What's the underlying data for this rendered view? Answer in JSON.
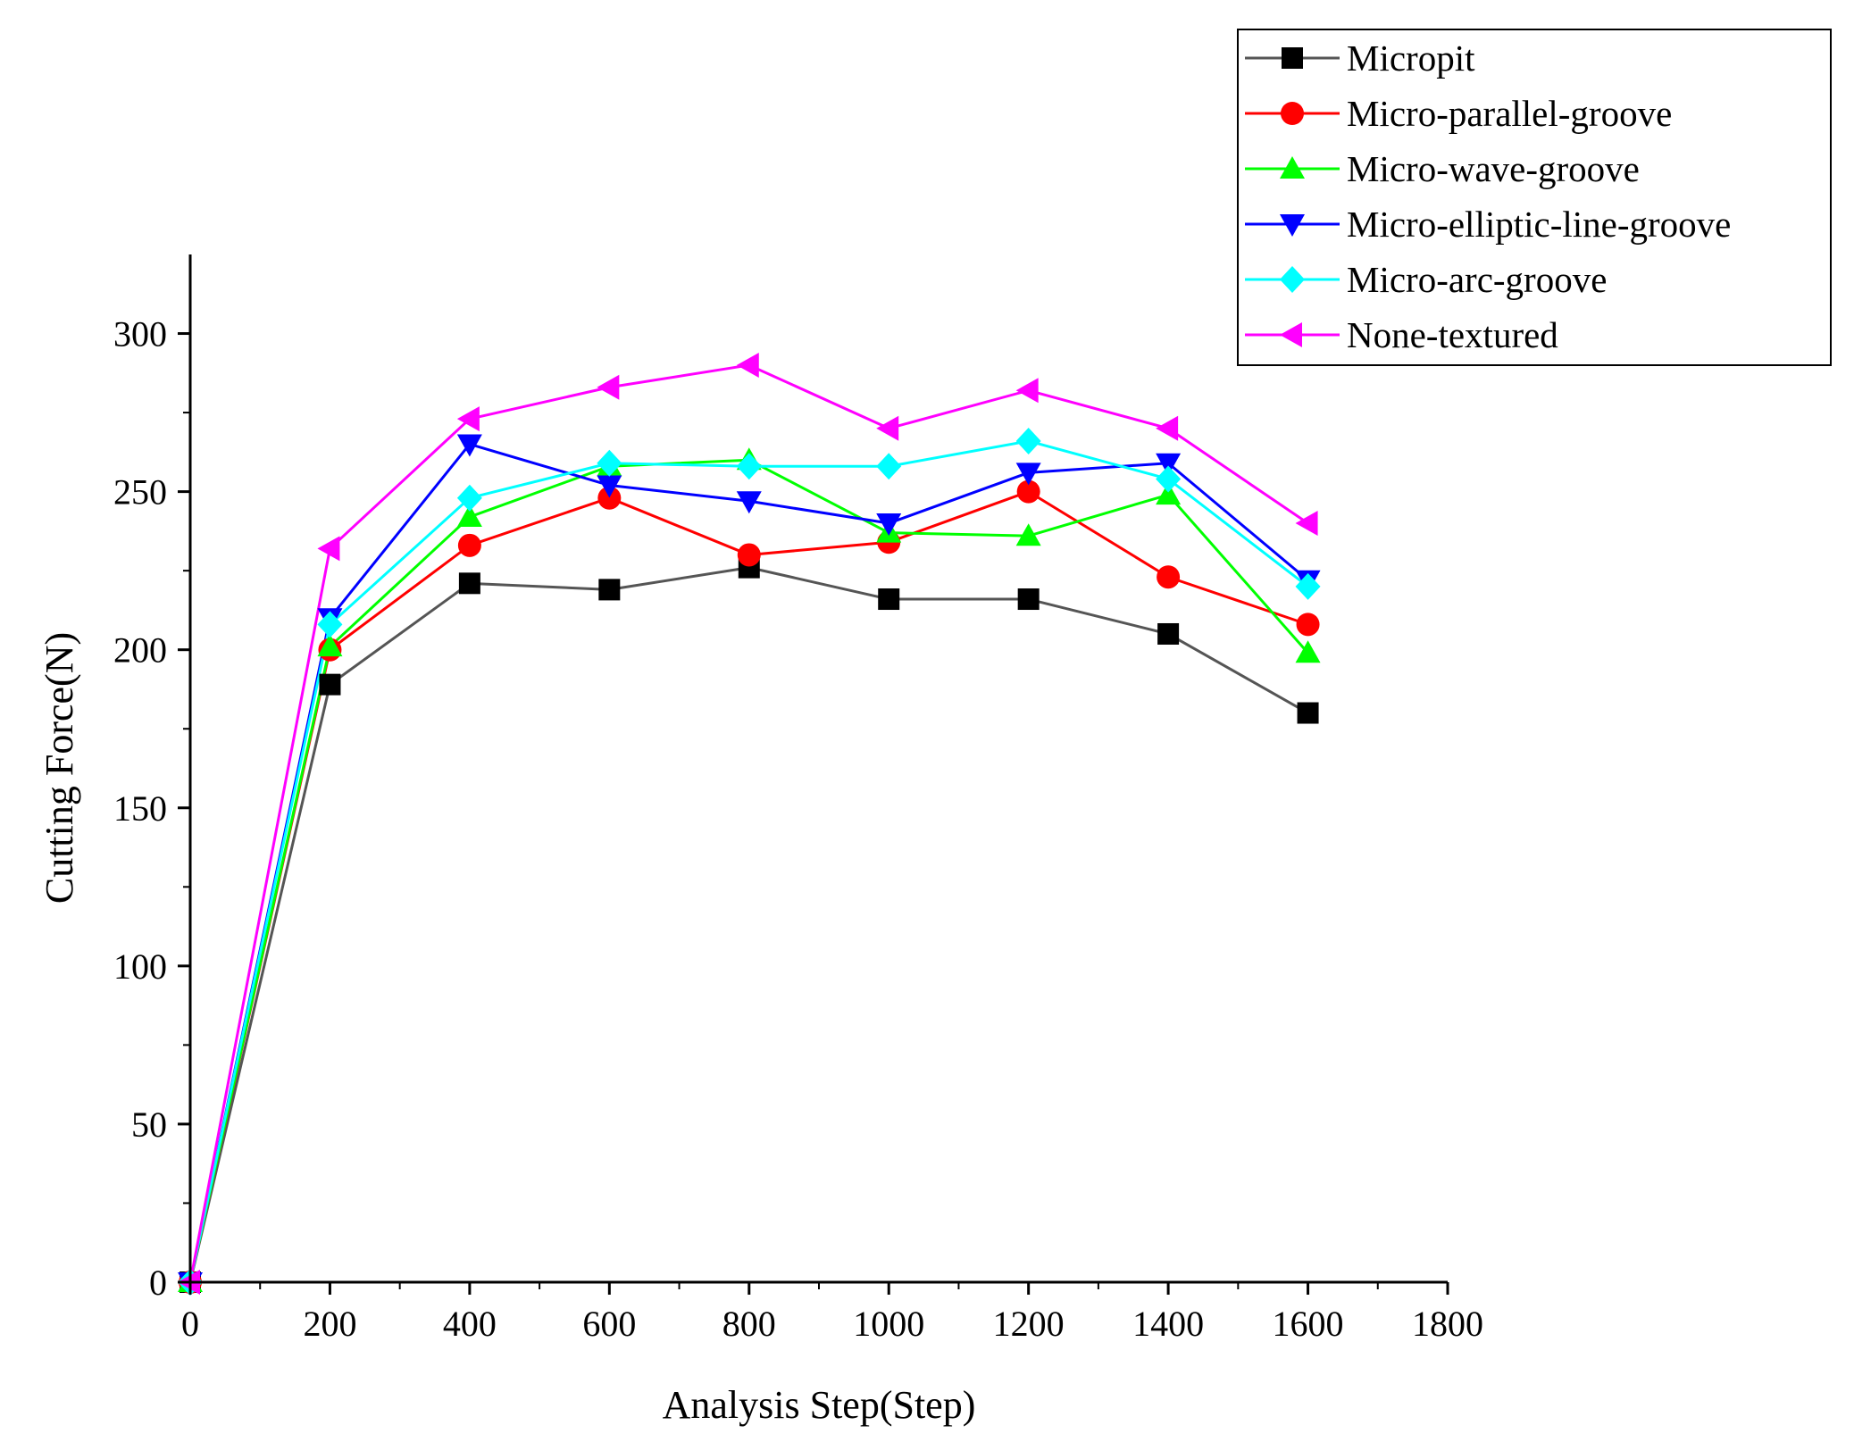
{
  "chart_data": {
    "type": "line",
    "title": "",
    "xlabel": "Analysis Step(Step)",
    "ylabel": "Cutting Force(N)",
    "xlim": [
      0,
      1800
    ],
    "ylim": [
      0,
      325
    ],
    "xticks": [
      0,
      200,
      400,
      600,
      800,
      1000,
      1200,
      1400,
      1600,
      1800
    ],
    "yticks": [
      0,
      50,
      100,
      150,
      200,
      250,
      300
    ],
    "xtick_labels": [
      "0",
      "200",
      "400",
      "600",
      "800",
      "1000",
      "1200",
      "1400",
      "1600",
      "1800"
    ],
    "ytick_labels": [
      "0",
      "50",
      "100",
      "150",
      "200",
      "250",
      "300"
    ],
    "grid": false,
    "legend_position": "top-right",
    "x": [
      0,
      200,
      400,
      600,
      800,
      1000,
      1200,
      1400,
      1600
    ],
    "series": [
      {
        "name": "Micropit",
        "color": "#000000",
        "line_color": "#555555",
        "marker": "square",
        "values": [
          0,
          189,
          221,
          219,
          226,
          216,
          216,
          205,
          180
        ]
      },
      {
        "name": "Micro-parallel-groove",
        "color": "#ff0000",
        "line_color": "#ff0000",
        "marker": "circle",
        "values": [
          0,
          200,
          233,
          248,
          230,
          234,
          250,
          223,
          208
        ]
      },
      {
        "name": "Micro-wave-groove",
        "color": "#00ff00",
        "line_color": "#00ff00",
        "marker": "triangle-up",
        "values": [
          0,
          201,
          242,
          258,
          260,
          237,
          236,
          249,
          199
        ]
      },
      {
        "name": "Micro-elliptic-line-groove",
        "color": "#0000ff",
        "line_color": "#0000ff",
        "marker": "triangle-down",
        "values": [
          0,
          210,
          265,
          252,
          247,
          240,
          256,
          259,
          222
        ]
      },
      {
        "name": "Micro-arc-groove",
        "color": "#00ffff",
        "line_color": "#00ffff",
        "marker": "diamond",
        "values": [
          0,
          208,
          248,
          259,
          258,
          258,
          266,
          254,
          220
        ]
      },
      {
        "name": "None-textured",
        "color": "#ff00ff",
        "line_color": "#ff00ff",
        "marker": "triangle-left",
        "values": [
          0,
          232,
          273,
          283,
          290,
          270,
          282,
          270,
          240
        ]
      }
    ]
  }
}
